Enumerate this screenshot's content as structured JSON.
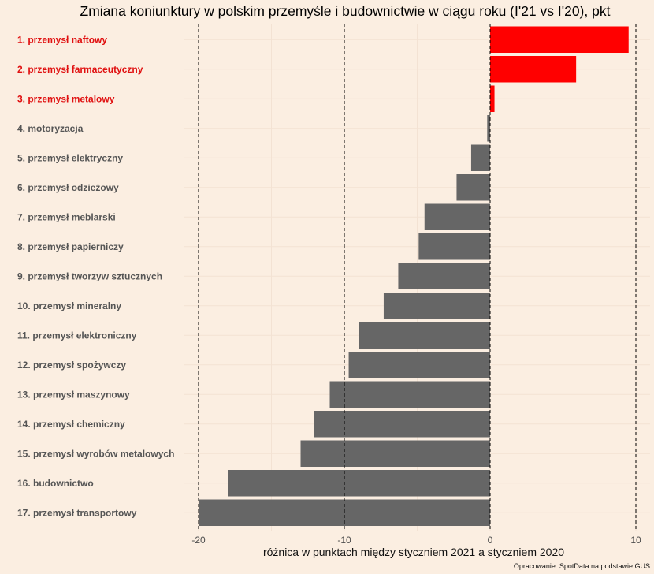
{
  "chart_data": {
    "type": "bar",
    "orientation": "horizontal",
    "title": "Zmiana koniunktury w polskim przemyśle i budownictwie w ciągu roku (I'21 vs I'20), pkt",
    "xlabel": "różnica w punktach między styczniem 2021 a styczniem 2020",
    "ylabel": "",
    "caption": "Opracowanie: SpotData na podstawie GUS",
    "xlim": [
      -20,
      10
    ],
    "xticks": [
      -20,
      -10,
      0,
      10
    ],
    "grid": true,
    "dashed_reference_lines": [
      -20,
      -10,
      0,
      10
    ],
    "categories": [
      "1. przemysł naftowy",
      "2. przemysł farmaceutyczny",
      "3. przemysł metalowy",
      "4. motoryzacja",
      "5. przemysł elektryczny",
      "6. przemysł odzieżowy",
      "7. przemysł meblarski",
      "8. przemysł papierniczy",
      "9. przemysł tworzyw sztucznych",
      "10. przemysł mineralny",
      "11. przemysł elektroniczny",
      "12. przemysł spożywczy",
      "13. przemysł maszynowy",
      "14. przemysł chemiczny",
      "15. przemysł wyrobów metalowych",
      "16. budownictwo",
      "17. przemysł transportowy"
    ],
    "values": [
      9.5,
      5.9,
      0.3,
      -0.2,
      -1.3,
      -2.3,
      -4.5,
      -4.9,
      -6.3,
      -7.3,
      -9.0,
      -9.7,
      -11.0,
      -12.1,
      -13.0,
      -18.0,
      -20.0
    ],
    "colors": {
      "positive": "#FF0000",
      "negative": "#666666",
      "positive_label": "#E01010",
      "negative_label": "#555555",
      "background": "#FBEEE1",
      "grid": "#F3E2D3"
    }
  }
}
